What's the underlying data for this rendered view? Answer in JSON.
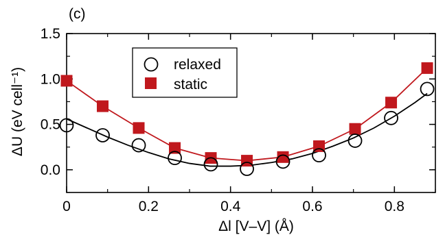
{
  "chart_data": {
    "type": "scatter",
    "panel_label": "(c)",
    "xlabel": "Δl [V–V] (Å)",
    "ylabel": "ΔU (eV cell⁻¹)",
    "xlim": [
      0,
      0.9
    ],
    "ylim": [
      -0.25,
      1.5
    ],
    "x_ticks": [
      "0",
      "0.2",
      "0.4",
      "0.6",
      "0.8"
    ],
    "y_ticks": [
      "0.0",
      "0.5",
      "1.0",
      "1.5"
    ],
    "legend_position": "top-left",
    "series": [
      {
        "name": "relaxed",
        "marker": "open-circle",
        "color": "#000000",
        "x": [
          0.0,
          0.088,
          0.176,
          0.264,
          0.352,
          0.44,
          0.528,
          0.616,
          0.704,
          0.792,
          0.88
        ],
        "y": [
          0.49,
          0.38,
          0.27,
          0.13,
          0.06,
          0.01,
          0.09,
          0.16,
          0.32,
          0.57,
          0.89
        ],
        "fit_x": [
          0.0,
          0.05,
          0.1,
          0.15,
          0.2,
          0.25,
          0.3,
          0.35,
          0.4,
          0.45,
          0.5,
          0.55,
          0.6,
          0.65,
          0.7,
          0.75,
          0.8,
          0.85,
          0.88
        ],
        "fit_y": [
          0.56,
          0.46,
          0.36,
          0.27,
          0.19,
          0.12,
          0.07,
          0.04,
          0.04,
          0.05,
          0.08,
          0.12,
          0.18,
          0.26,
          0.35,
          0.46,
          0.59,
          0.74,
          0.84
        ]
      },
      {
        "name": "static",
        "marker": "filled-square",
        "color": "#c0181d",
        "x": [
          0.0,
          0.088,
          0.176,
          0.264,
          0.352,
          0.44,
          0.528,
          0.616,
          0.704,
          0.792,
          0.88
        ],
        "y": [
          0.98,
          0.7,
          0.46,
          0.24,
          0.13,
          0.1,
          0.14,
          0.26,
          0.45,
          0.74,
          1.12
        ]
      }
    ]
  }
}
